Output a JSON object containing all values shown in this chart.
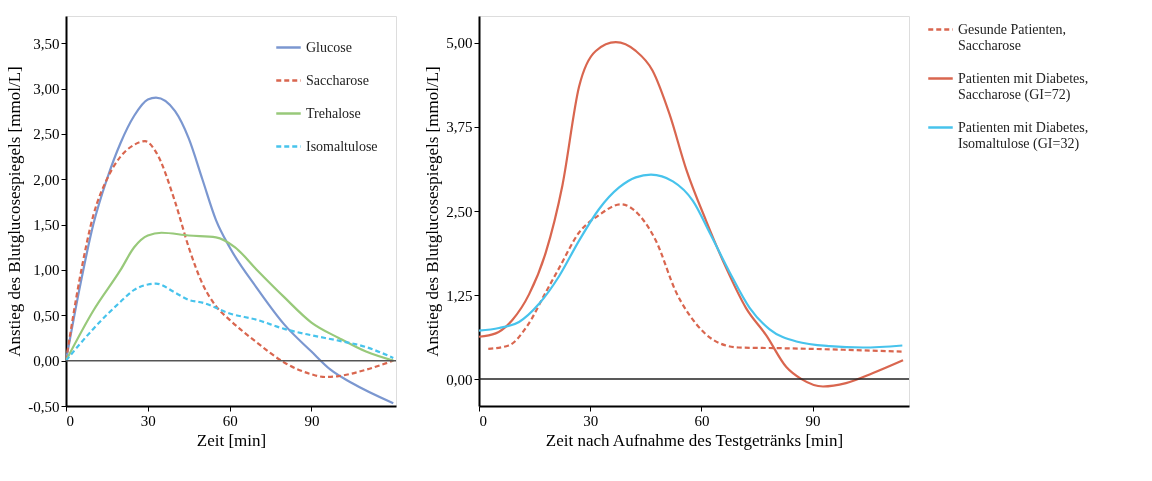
{
  "chart_data": [
    {
      "type": "line",
      "xlabel": "Zeit [min]",
      "ylabel": "Anstieg des Blutglucosespiegels [mmol/L]",
      "xlim": [
        0,
        121
      ],
      "ylim": [
        -0.5,
        3.8
      ],
      "xticks": [
        0,
        30,
        60,
        90
      ],
      "yticks": [
        {
          "value": -0.5,
          "label": "-0,50"
        },
        {
          "value": 0,
          "label": "0,00"
        },
        {
          "value": 0.5,
          "label": "0,50"
        },
        {
          "value": 1,
          "label": "1,00"
        },
        {
          "value": 1.5,
          "label": "1,50"
        },
        {
          "value": 2,
          "label": "2,00"
        },
        {
          "value": 2.5,
          "label": "2,50"
        },
        {
          "value": 3,
          "label": "3,00"
        },
        {
          "value": 3.5,
          "label": "3,50"
        }
      ],
      "grid": false,
      "legend": "top right",
      "marker": "none",
      "ref_lines": [
        {
          "axis": "y",
          "value": 0,
          "color": "#555555"
        }
      ],
      "series": [
        {
          "name": "Glucose",
          "color": "#7b97d0",
          "line_style": "solid",
          "x": [
            0,
            5,
            10,
            15,
            20,
            25,
            30,
            33,
            40,
            45,
            50,
            55,
            60,
            70,
            80,
            90,
            97,
            105,
            120
          ],
          "values": [
            0,
            0.8,
            1.5,
            2.0,
            2.4,
            2.7,
            2.88,
            2.9,
            2.75,
            2.45,
            2.0,
            1.55,
            1.25,
            0.8,
            0.4,
            0.1,
            -0.1,
            -0.25,
            -0.47
          ]
        },
        {
          "name": "Saccharose",
          "color": "#d9664f",
          "line_style": "dashed",
          "x": [
            0,
            5,
            10,
            15,
            20,
            25,
            29,
            33,
            40,
            45,
            50,
            55,
            60,
            70,
            80,
            90,
            95,
            100,
            110,
            120
          ],
          "values": [
            0,
            0.9,
            1.6,
            2.0,
            2.25,
            2.38,
            2.42,
            2.3,
            1.75,
            1.25,
            0.85,
            0.6,
            0.45,
            0.2,
            -0.02,
            -0.15,
            -0.18,
            -0.17,
            -0.1,
            0
          ]
        },
        {
          "name": "Trehalose",
          "color": "#98c97a",
          "line_style": "solid",
          "x": [
            0,
            10,
            20,
            25,
            30,
            35,
            45,
            55,
            62,
            70,
            80,
            90,
            100,
            110,
            120
          ],
          "values": [
            0,
            0.55,
            1.0,
            1.25,
            1.38,
            1.41,
            1.38,
            1.36,
            1.25,
            1.0,
            0.7,
            0.42,
            0.25,
            0.1,
            0
          ]
        },
        {
          "name": "Isomaltulose",
          "color": "#47c3ec",
          "line_style": "dashed",
          "x": [
            0,
            10,
            20,
            25,
            30,
            33,
            40,
            45,
            50,
            60,
            70,
            80,
            90,
            100,
            110,
            120
          ],
          "values": [
            0,
            0.35,
            0.65,
            0.78,
            0.84,
            0.85,
            0.75,
            0.67,
            0.64,
            0.52,
            0.45,
            0.35,
            0.28,
            0.22,
            0.15,
            0.03
          ]
        }
      ]
    },
    {
      "type": "line",
      "xlabel": "Zeit nach Aufnahme des Testgetränks [min]",
      "ylabel": "Anstieg des Blutglucosespiegels [mmol/L]",
      "xlim": [
        0,
        116
      ],
      "ylim": [
        -0.4,
        5.4
      ],
      "xticks": [
        0,
        30,
        60,
        90
      ],
      "yticks": [
        {
          "value": 0,
          "label": "0,00"
        },
        {
          "value": 1.25,
          "label": "1,25"
        },
        {
          "value": 2.5,
          "label": "2,50"
        },
        {
          "value": 3.75,
          "label": "3,75"
        },
        {
          "value": 5,
          "label": "5,00"
        }
      ],
      "grid": false,
      "legend": "right",
      "marker": "none",
      "ref_lines": [
        {
          "axis": "y",
          "value": 0,
          "color": "#222222"
        }
      ],
      "series": [
        {
          "name": "Gesunde Patienten, Saccharose",
          "color": "#d9664f",
          "line_style": "dashed",
          "x": [
            2.5,
            8,
            13,
            18,
            21.6,
            27,
            32.4,
            38.3,
            43.2,
            47.7,
            53.2,
            58.6,
            63,
            70,
            81,
            114
          ],
          "values": [
            0.45,
            0.5,
            0.79,
            1.29,
            1.65,
            2.18,
            2.44,
            2.6,
            2.44,
            2.06,
            1.29,
            0.82,
            0.59,
            0.47,
            0.46,
            0.41
          ]
        },
        {
          "name": "Patienten mit Diabetes, Saccharose (GI=72)",
          "color": "#d9664f",
          "line_style": "solid",
          "x": [
            0,
            4.5,
            9,
            13.5,
            18,
            22.5,
            27,
            31.5,
            36.9,
            42.3,
            46.8,
            51.4,
            55.9,
            61.3,
            66.7,
            72,
            77.5,
            82.9,
            87,
            92.8,
            99,
            106.3,
            114.4
          ],
          "values": [
            0.63,
            0.68,
            0.88,
            1.26,
            1.88,
            2.88,
            4.35,
            4.88,
            5.01,
            4.88,
            4.59,
            3.94,
            3.12,
            2.35,
            1.65,
            1.06,
            0.65,
            0.18,
            0,
            -0.11,
            -0.06,
            0.09,
            0.28
          ]
        },
        {
          "name": "Patienten mit Diabetes, Isomaltulose (GI=32)",
          "color": "#47c3ec",
          "line_style": "solid",
          "x": [
            0,
            5.4,
            10.8,
            16.2,
            21.6,
            27,
            32.4,
            37.8,
            42.3,
            46.4,
            52.3,
            57.7,
            62.2,
            67.6,
            73,
            78.4,
            85.6,
            94.6,
            103.6,
            114.2
          ],
          "values": [
            0.72,
            0.76,
            0.85,
            1.12,
            1.53,
            2.06,
            2.53,
            2.85,
            3.0,
            3.04,
            2.94,
            2.65,
            2.18,
            1.59,
            1.06,
            0.74,
            0.56,
            0.49,
            0.47,
            0.5
          ]
        }
      ]
    }
  ]
}
